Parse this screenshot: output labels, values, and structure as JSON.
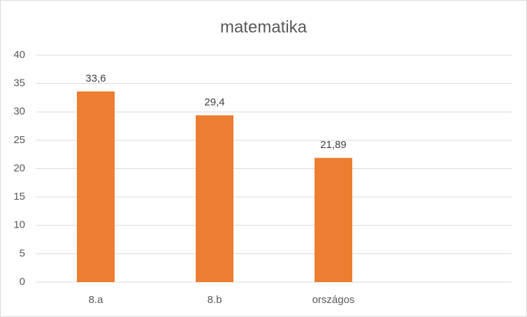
{
  "chart_data": {
    "type": "bar",
    "title": "matematika",
    "categories": [
      "8.a",
      "8.b",
      "országos",
      null
    ],
    "values": [
      33.6,
      29.4,
      21.89,
      null
    ],
    "value_labels": [
      "33,6",
      "29,4",
      "21,89",
      null
    ],
    "color": "#ed7d31",
    "ylim": [
      0,
      40
    ],
    "yticks": [
      0,
      5,
      10,
      15,
      20,
      25,
      30,
      35,
      40
    ],
    "grid": true
  }
}
